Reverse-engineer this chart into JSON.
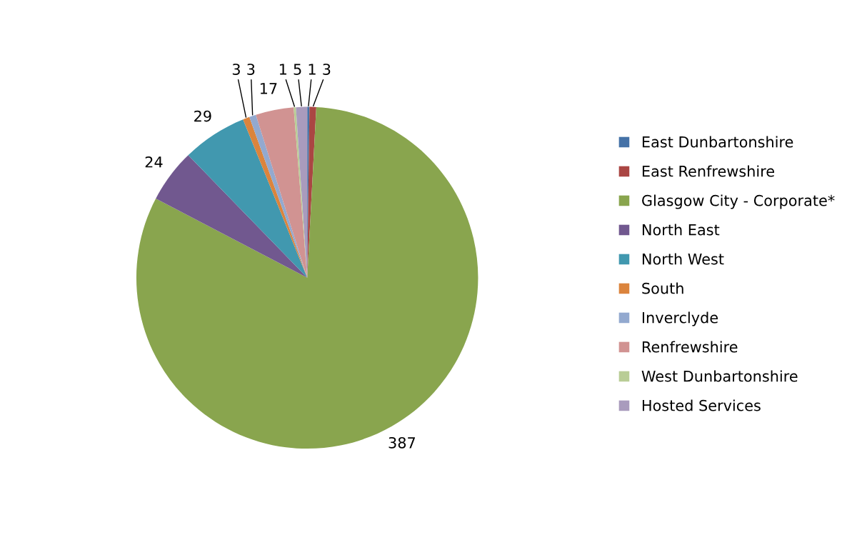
{
  "chart_data": {
    "type": "pie",
    "categories": [
      "East Dunbartonshire",
      "East Renfrewshire",
      "Glasgow City - Corporate*",
      "North East",
      "North West",
      "South",
      "Inverclyde",
      "Renfrewshire",
      "West Dunbartonshire",
      "Hosted Services"
    ],
    "values": [
      1,
      3,
      387,
      24,
      29,
      3,
      3,
      17,
      1,
      5
    ],
    "colors": [
      "#4572a7",
      "#aa4643",
      "#89a54e",
      "#71588f",
      "#4198af",
      "#db843d",
      "#93a9cf",
      "#d19392",
      "#b9cd96",
      "#a99bbd"
    ],
    "data_labels": true,
    "legend": "right"
  }
}
